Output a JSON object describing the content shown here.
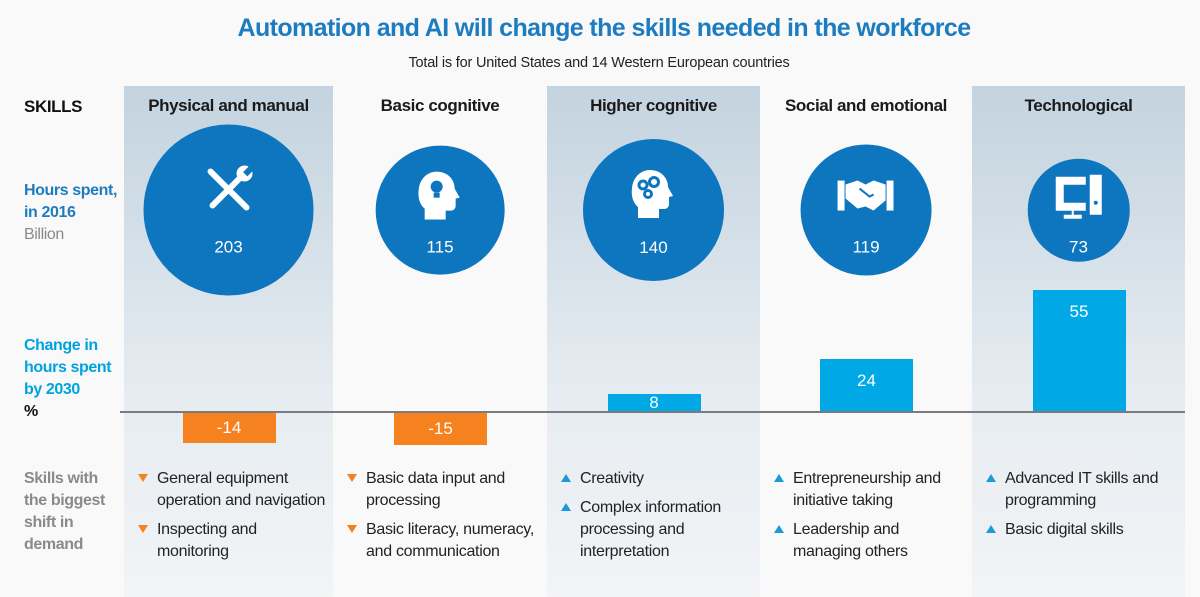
{
  "title": "Automation and AI will change the skills needed in the workforce",
  "subtitle": "Total is for United States and 14 Western European countries",
  "row_labels": {
    "skills": "SKILLS",
    "hours_1": "Hours spent,",
    "hours_2": "in 2016",
    "hours_unit": "Billion",
    "change_1": "Change in",
    "change_2": "hours spent",
    "change_3": "by 2030",
    "change_unit": "%",
    "shift_1": "Skills with",
    "shift_2": "the biggest",
    "shift_3": "shift in",
    "shift_4": "demand"
  },
  "colors": {
    "title": "#1d7cc0",
    "circle": "#0d76bf",
    "positive": "#00a9e6",
    "negative": "#f5821f",
    "change_label": "#00a3e0",
    "shift_label": "#8a8a8a"
  },
  "chart_data": {
    "type": "bar",
    "title": "Automation and AI will change the skills needed in the workforce",
    "categories": [
      "Physical and manual",
      "Basic cognitive",
      "Higher cognitive",
      "Social and emotional",
      "Technological"
    ],
    "series": [
      {
        "name": "Hours spent, in 2016 (Billion)",
        "values": [
          203,
          115,
          140,
          119,
          73
        ],
        "mark": "bubble"
      },
      {
        "name": "Change in hours spent by 2030 (%)",
        "values": [
          -14,
          -15,
          8,
          24,
          55
        ],
        "mark": "bar"
      }
    ],
    "ylim": [
      -15,
      55
    ]
  },
  "columns": [
    {
      "name": "Physical and manual",
      "icon": "tools-icon",
      "hours": "203",
      "change": "-14",
      "direction": "down",
      "skills": [
        "General equipment operation and navigation",
        "Inspecting and monitoring"
      ]
    },
    {
      "name": "Basic cognitive",
      "icon": "head-lightbulb-icon",
      "hours": "115",
      "change": "-15",
      "direction": "down",
      "skills": [
        "Basic data input and processing",
        "Basic literacy, numeracy, and communication"
      ]
    },
    {
      "name": "Higher cognitive",
      "icon": "head-gears-icon",
      "hours": "140",
      "change": "8",
      "direction": "up",
      "skills": [
        "Creativity",
        "Complex information processing and interpretation"
      ]
    },
    {
      "name": "Social and emotional",
      "icon": "handshake-icon",
      "hours": "119",
      "change": "24",
      "direction": "up",
      "skills": [
        "Entrepreneurship and initiative taking",
        "Leadership and managing others"
      ]
    },
    {
      "name": "Technological",
      "icon": "computer-icon",
      "hours": "73",
      "change": "55",
      "direction": "up",
      "skills": [
        "Advanced IT skills and programming",
        "Basic digital skills"
      ]
    }
  ]
}
